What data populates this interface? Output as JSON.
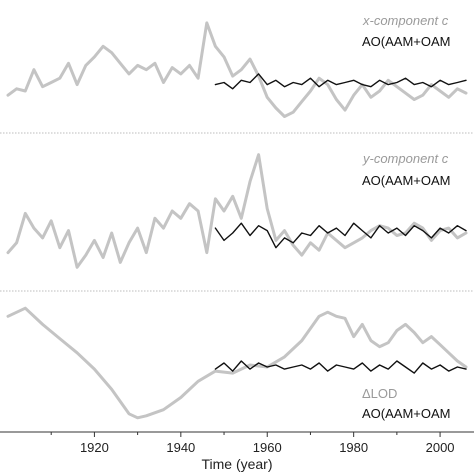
{
  "colors": {
    "series_gray": "#c4c4c4",
    "series_black": "#111111",
    "divider": "#bdbdbd",
    "axis": "#333333"
  },
  "chart_data": [
    {
      "type": "line",
      "panel": "top",
      "legend_placement": "top-right",
      "legend": {
        "gray": "x-component c",
        "black": "AO(AAM+OAM"
      },
      "series": [
        {
          "name": "x-component c",
          "color": "#c4c4c4",
          "x": [
            1900,
            1902,
            1904,
            1906,
            1908,
            1910,
            1912,
            1914,
            1916,
            1918,
            1920,
            1922,
            1924,
            1926,
            1928,
            1930,
            1932,
            1934,
            1936,
            1938,
            1940,
            1942,
            1944,
            1946,
            1948,
            1950,
            1952,
            1954,
            1956,
            1958,
            1960,
            1962,
            1964,
            1966,
            1968,
            1970,
            1972,
            1974,
            1976,
            1978,
            1980,
            1982,
            1984,
            1986,
            1988,
            1990,
            1992,
            1994,
            1996,
            1998,
            2000,
            2002,
            2004,
            2006
          ],
          "y": [
            0.4,
            0.7,
            0.6,
            1.6,
            0.8,
            1.0,
            1.2,
            1.9,
            0.9,
            1.8,
            2.2,
            2.7,
            2.4,
            1.9,
            1.4,
            1.8,
            1.6,
            1.9,
            1.0,
            1.7,
            1.4,
            1.8,
            1.2,
            3.8,
            2.7,
            2.2,
            1.3,
            1.6,
            2.1,
            1.3,
            0.3,
            -0.2,
            -0.6,
            -0.4,
            0.1,
            0.6,
            1.2,
            0.9,
            0.2,
            -0.3,
            0.4,
            0.9,
            0.3,
            0.6,
            1.1,
            0.8,
            0.5,
            0.2,
            0.4,
            0.9,
            0.6,
            0.3,
            0.7,
            0.5
          ]
        },
        {
          "name": "AO(AAM+OAM",
          "color": "#111111",
          "x": [
            1948,
            1950,
            1952,
            1954,
            1956,
            1958,
            1960,
            1962,
            1964,
            1966,
            1968,
            1970,
            1972,
            1974,
            1976,
            1978,
            1980,
            1982,
            1984,
            1986,
            1988,
            1990,
            1992,
            1994,
            1996,
            1998,
            2000,
            2002,
            2004,
            2006
          ],
          "y": [
            0.9,
            1.0,
            0.7,
            1.1,
            1.0,
            1.4,
            0.9,
            1.1,
            0.8,
            1.0,
            0.9,
            1.2,
            0.8,
            1.1,
            0.9,
            1.0,
            1.1,
            0.9,
            0.8,
            1.1,
            0.9,
            1.0,
            1.2,
            0.9,
            1.0,
            0.8,
            1.1,
            0.9,
            1.0,
            1.1
          ]
        }
      ]
    },
    {
      "type": "line",
      "panel": "middle",
      "legend_placement": "top-right",
      "legend": {
        "gray": "y-component c",
        "black": "AO(AAM+OAM"
      },
      "series": [
        {
          "name": "y-component c",
          "color": "#c4c4c4",
          "x": [
            1900,
            1902,
            1904,
            1906,
            1908,
            1910,
            1912,
            1914,
            1916,
            1918,
            1920,
            1922,
            1924,
            1926,
            1928,
            1930,
            1932,
            1934,
            1936,
            1938,
            1940,
            1942,
            1944,
            1946,
            1948,
            1950,
            1952,
            1954,
            1956,
            1958,
            1960,
            1962,
            1964,
            1966,
            1968,
            1970,
            1972,
            1974,
            1976,
            1978,
            1980,
            1982,
            1984,
            1986,
            1988,
            1990,
            1992,
            1994,
            1996,
            1998,
            2000,
            2002,
            2004,
            2006
          ],
          "y": [
            -0.8,
            -0.4,
            0.8,
            0.2,
            -0.2,
            0.5,
            -0.6,
            0.1,
            -1.4,
            -0.9,
            -0.3,
            -1.0,
            0.0,
            -1.2,
            -0.4,
            0.2,
            -0.8,
            0.6,
            0.2,
            0.9,
            0.6,
            1.2,
            0.9,
            -0.8,
            1.4,
            0.9,
            1.5,
            0.6,
            2.1,
            3.2,
            1.0,
            -0.3,
            0.1,
            -0.5,
            -0.9,
            -0.4,
            -0.7,
            0.0,
            -0.3,
            -0.6,
            -0.4,
            -0.2,
            0.1,
            0.3,
            0.2,
            -0.1,
            0.0,
            0.4,
            0.2,
            -0.3,
            0.1,
            0.2,
            -0.2,
            0.0
          ]
        },
        {
          "name": "AO(AAM+OAM",
          "color": "#111111",
          "x": [
            1948,
            1950,
            1952,
            1954,
            1956,
            1958,
            1960,
            1962,
            1964,
            1966,
            1968,
            1970,
            1972,
            1974,
            1976,
            1978,
            1980,
            1982,
            1984,
            1986,
            1988,
            1990,
            1992,
            1994,
            1996,
            1998,
            2000,
            2002,
            2004,
            2006
          ],
          "y": [
            0.2,
            -0.3,
            0.0,
            0.4,
            -0.1,
            0.3,
            0.1,
            -0.6,
            -0.2,
            -0.4,
            0.0,
            -0.1,
            0.3,
            0.0,
            0.2,
            -0.1,
            0.4,
            0.1,
            -0.2,
            0.3,
            0.0,
            0.2,
            -0.1,
            0.3,
            0.1,
            -0.2,
            0.2,
            0.0,
            0.3,
            0.1
          ]
        }
      ]
    },
    {
      "type": "line",
      "panel": "bottom",
      "legend_placement": "bottom-right",
      "legend": {
        "gray": "ΔLOD",
        "black": "AO(AAM+OAM"
      },
      "series": [
        {
          "name": "ΔLOD",
          "color": "#c4c4c4",
          "x": [
            1900,
            1904,
            1908,
            1912,
            1916,
            1920,
            1924,
            1928,
            1930,
            1932,
            1936,
            1940,
            1944,
            1948,
            1952,
            1956,
            1960,
            1964,
            1968,
            1972,
            1974,
            1976,
            1978,
            1980,
            1982,
            1984,
            1986,
            1988,
            1990,
            1992,
            1994,
            1996,
            1998,
            2000,
            2002,
            2004,
            2006
          ],
          "y": [
            2.6,
            3.0,
            2.2,
            1.5,
            0.8,
            0.0,
            -1.0,
            -2.2,
            -2.4,
            -2.3,
            -2.0,
            -1.4,
            -0.6,
            -0.1,
            -0.2,
            0.2,
            0.1,
            0.6,
            1.4,
            2.6,
            2.8,
            2.6,
            2.5,
            1.6,
            2.2,
            1.4,
            1.1,
            1.3,
            1.9,
            2.2,
            1.8,
            1.3,
            1.6,
            1.2,
            0.8,
            0.4,
            0.1
          ]
        },
        {
          "name": "AO(AAM+OAM",
          "color": "#111111",
          "x": [
            1948,
            1950,
            1952,
            1954,
            1956,
            1958,
            1960,
            1962,
            1964,
            1966,
            1968,
            1970,
            1972,
            1974,
            1976,
            1978,
            1980,
            1982,
            1984,
            1986,
            1988,
            1990,
            1992,
            1994,
            1996,
            1998,
            2000,
            2002,
            2004,
            2006
          ],
          "y": [
            0.0,
            0.3,
            -0.1,
            0.4,
            0.0,
            0.3,
            0.1,
            0.2,
            0.0,
            0.1,
            0.2,
            0.0,
            0.3,
            -0.1,
            0.2,
            0.1,
            0.0,
            0.3,
            -0.1,
            0.2,
            0.0,
            0.4,
            0.1,
            -0.2,
            0.3,
            0.0,
            0.2,
            -0.1,
            0.1,
            0.0
          ]
        }
      ]
    }
  ],
  "x_axis": {
    "label": "Time (year)",
    "tick_labels": [
      "1920",
      "1940",
      "1960",
      "1980",
      "2000"
    ],
    "tick_values": [
      1920,
      1940,
      1960,
      1980,
      2000
    ],
    "range": [
      1900,
      2006
    ]
  }
}
